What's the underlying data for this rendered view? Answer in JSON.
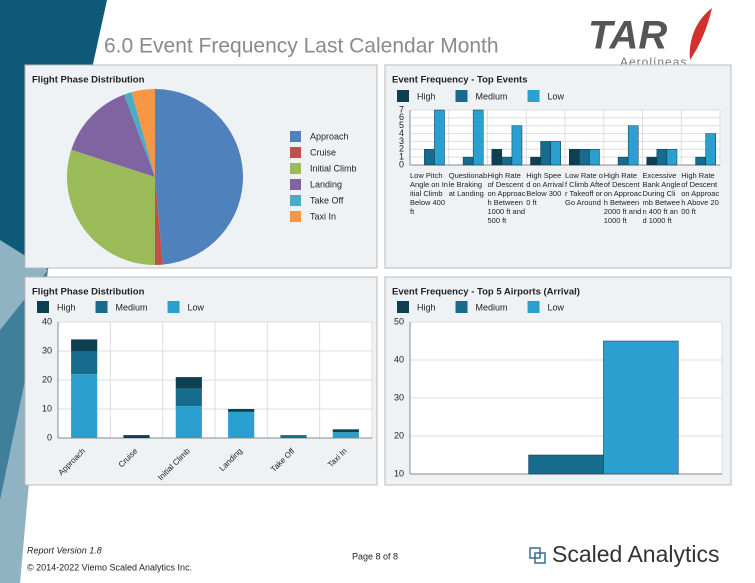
{
  "header": {
    "title": "6.0 Event Frequency Last Calendar Month",
    "logo_name": "TAR",
    "logo_tagline": "Aerolíneas"
  },
  "footer": {
    "version": "Report Version 1.8",
    "copyright": "© 2014-2022 Viemo Scaled Analytics Inc.",
    "page": "Page 8 of 8",
    "brand": "Scaled Analytics"
  },
  "chart_data": [
    {
      "type": "pie",
      "title": "Flight Phase Distribution",
      "categories": [
        "Approach",
        "Cruise",
        "Initial Climb",
        "Landing",
        "Take Off",
        "Taxi In"
      ],
      "values": [
        34,
        1,
        21,
        10,
        1,
        3
      ],
      "colors": [
        "#4f81bd",
        "#c0504d",
        "#9bbb59",
        "#8064a2",
        "#4bacc6",
        "#f79646"
      ],
      "legend": "right"
    },
    {
      "type": "grouped_bar",
      "title": "Event Frequency - Top Events",
      "categories": [
        "Low Pitch Angle on Initial Climb Below 400 ft",
        "Questionable Braking at Landing",
        "High Rate of Descent on Approach Between 1000 ft and 500 ft",
        "High Speed on Arrival Below 3000 ft",
        "Low Rate of Climb After Takeoff or Go Around",
        "High Rate of Descent on Approach Between 2000 ft and 1000 ft",
        "Excessive Bank Angle During Climb Between 400 ft and 1000 ft",
        "High Rate of Descent on Approach Above 2000 ft"
      ],
      "series": [
        {
          "name": "High",
          "color": "#0f3f52",
          "values": [
            0,
            0,
            2,
            1,
            2,
            0,
            1,
            0
          ]
        },
        {
          "name": "Medium",
          "color": "#176b8c",
          "values": [
            2,
            1,
            1,
            3,
            2,
            1,
            2,
            1
          ]
        },
        {
          "name": "Low",
          "color": "#2b9fd0",
          "values": [
            7,
            7,
            5,
            3,
            2,
            5,
            2,
            4
          ]
        }
      ],
      "ylim": [
        0,
        7
      ],
      "yticks": [
        0,
        1,
        2,
        3,
        4,
        5,
        6,
        7
      ],
      "grid": true,
      "legend": "top"
    },
    {
      "type": "stacked_bar",
      "title": "Flight Phase Distribution",
      "categories": [
        "Approach",
        "Cruise",
        "Initial Climb",
        "Landing",
        "Take Off",
        "Taxi In"
      ],
      "series": [
        {
          "name": "High",
          "color": "#0f3f52",
          "values": [
            4,
            1,
            4,
            1,
            0,
            1
          ]
        },
        {
          "name": "Medium",
          "color": "#176b8c",
          "values": [
            8,
            0,
            6,
            0,
            1,
            0
          ]
        },
        {
          "name": "Low",
          "color": "#2b9fd0",
          "values": [
            22,
            0,
            11,
            9,
            0,
            2
          ]
        }
      ],
      "stack_order": "bottom_last",
      "ylim": [
        0,
        40
      ],
      "yticks": [
        0,
        10,
        20,
        30,
        40
      ],
      "grid": true,
      "legend": "top"
    },
    {
      "type": "grouped_bar",
      "title": "Event Frequency - Top 5 Airports (Arrival)",
      "categories": [
        null
      ],
      "series": [
        {
          "name": "High",
          "color": "#0f3f52",
          "values": [
            null
          ]
        },
        {
          "name": "Medium",
          "color": "#176b8c",
          "values": [
            15
          ]
        },
        {
          "name": "Low",
          "color": "#2b9fd0",
          "values": [
            45
          ]
        }
      ],
      "ylim": [
        10,
        50
      ],
      "yticks": [
        10,
        20,
        30,
        40,
        50
      ],
      "grid": true,
      "legend": "top"
    }
  ]
}
